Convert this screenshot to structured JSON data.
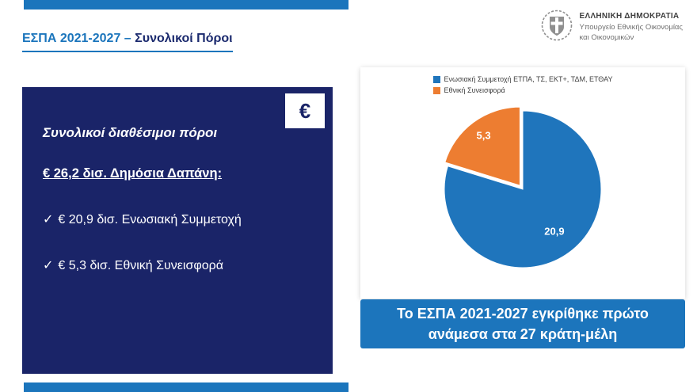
{
  "header": {
    "title_primary": "ΕΣΠΑ 2021-2027",
    "title_separator": "–",
    "title_secondary": "Συνολικοί Πόροι",
    "logo": {
      "org": "ΕΛΛΗΝΙΚΗ ΔΗΜΟΚΡΑΤΙΑ",
      "dept_line1": "Υπουργείο Εθνικής Οικονομίας",
      "dept_line2": "και Οικονομικών"
    }
  },
  "info_box": {
    "currency_symbol": "€",
    "heading": "Συνολικοί διαθέσιμοι πόροι",
    "subheading": "€ 26,2 δισ. Δημόσια Δαπάνη:",
    "bullets": [
      {
        "check": "✓",
        "text": "€ 20,9 δισ. Ενωσιακή Συμμετοχή"
      },
      {
        "check": "✓",
        "text": "€ 5,3 δισ. Εθνική Συνεισφορά"
      }
    ]
  },
  "chart_data": {
    "type": "pie",
    "title": "",
    "legend_position": "top",
    "total": 26.2,
    "slices": [
      {
        "label": "Ενωσιακή Συμμετοχή ΕΤΠΑ, ΤΣ, ΕΚΤ+, ΤΔΜ, ΕΤΘΑΥ",
        "value": 20.9,
        "display": "20,9",
        "color": "#1F75BC",
        "exploded": false
      },
      {
        "label": "Εθνική Συνεισφορά",
        "value": 5.3,
        "display": "5,3",
        "color": "#ED7D31",
        "exploded": true
      }
    ]
  },
  "callout": {
    "line1": "Το ΕΣΠΑ 2021-2027 εγκρίθηκε πρώτο",
    "line2": "ανάμεσα στα 27 κράτη-μέλη"
  },
  "colors": {
    "accent_blue": "#1B75BC",
    "navy_box": "#1A2468",
    "pie_blue": "#1F75BC",
    "pie_orange": "#ED7D31"
  }
}
